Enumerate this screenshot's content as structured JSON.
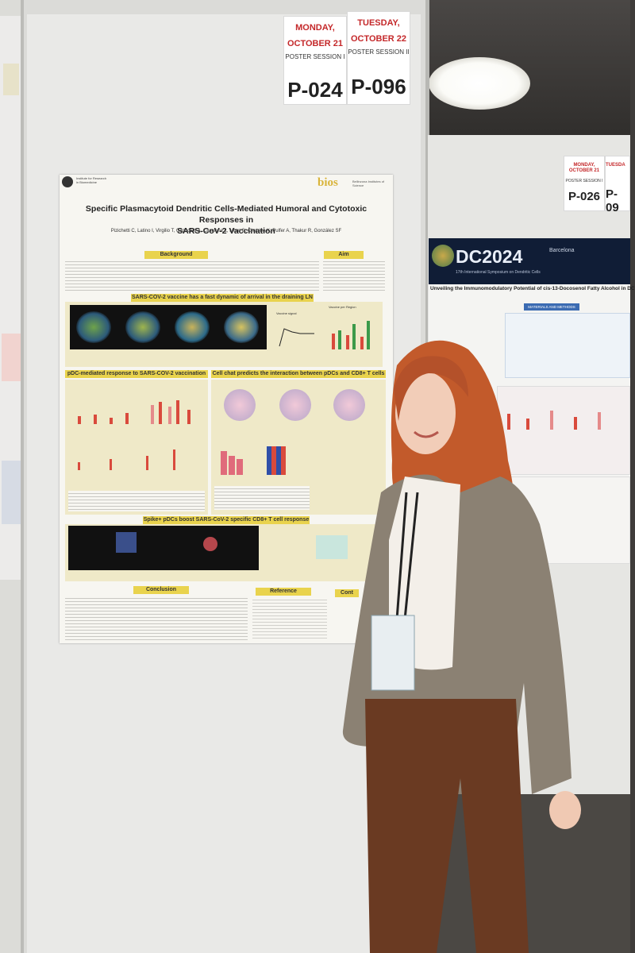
{
  "session_card_left": {
    "day": "MONDAY,",
    "date": "OCTOBER 21",
    "session": "POSTER SESSION I",
    "poster_number": "P-024"
  },
  "session_card_right": {
    "day": "TUESDAY,",
    "date": "OCTOBER 22",
    "session": "POSTER SESSION II",
    "poster_number": "P-096"
  },
  "main_poster": {
    "institute": "Institute for Research in Biomedicine",
    "bios_logo": "bios",
    "bios_tagline": "Bellinzona Institutes of Science",
    "title_line1": "Specific Plasmacytoid Dendritic Cells-Mediated Humoral and Cytotoxic Responses in",
    "title_line2": "SARS-CoV-2 Vaccination",
    "authors": "Pizichetti C, Latino I, Virgilio T, Capucetti A, Cascione L, Moro S, Chahine K, Pulfer A, Thakur R, González SF",
    "sections": {
      "background": "Background",
      "aim": "Aim",
      "section2": "SARS-COV-2 vaccine has a fast dynamic of arrival in the draining LN",
      "section3": "pDC-mediated response to SARS-COV-2 vaccination",
      "section4": "Cell chat predicts the interaction between pDCs and CD8+ T cells",
      "section5": "Spike+ pDCs boost SARS-CoV-2 specific CD8+ T cell response",
      "conclusion": "Conclusion",
      "reference": "Reference",
      "contact": "Cont"
    },
    "figure_labels": {
      "vaccine_signal": "Vaccine signal",
      "vaccine_per_region": "Vaccine per Region"
    }
  },
  "right_board": {
    "poster_number": "P-026",
    "poster_number2": "P-09",
    "day": "MONDAY,",
    "date": "OCTOBER 21",
    "session": "POSTER SESSION I",
    "day2": "TUESDA",
    "dc_title": "DC2024",
    "dc_city": "Barcelona",
    "dc_subtitle": "17th International Symposium on Dendritic Cells",
    "poster_title": "Unveiling the Immunomodulatory Potential of cis-13-Docosenol Fatty Alcohol in DC",
    "materials_header": "MATERIALS AND METHODS"
  },
  "colors": {
    "header_yellow": "#e9d34d",
    "date_red": "#c4282a",
    "blazer": "#8b8173",
    "hair": "#c25a2b",
    "trousers": "#6a3a22"
  }
}
